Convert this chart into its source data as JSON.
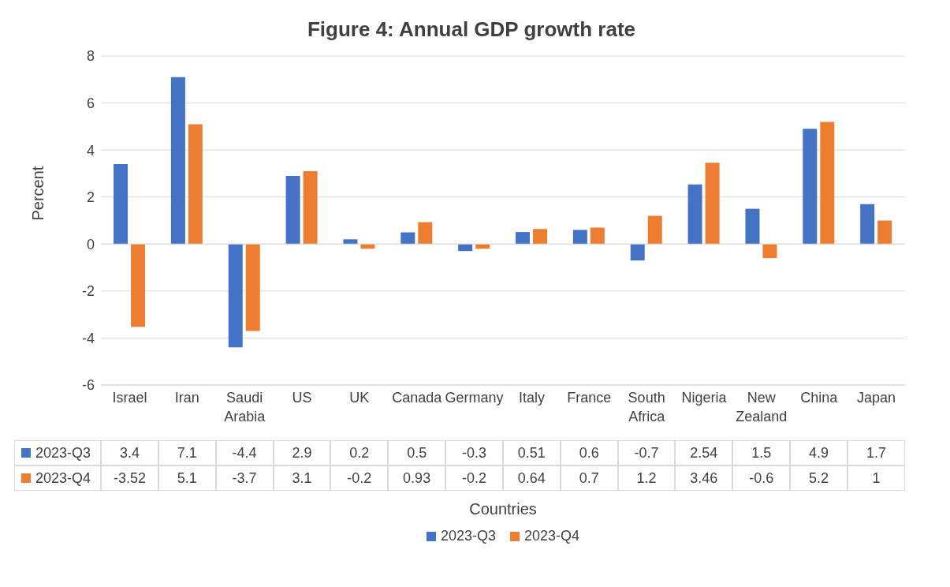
{
  "chart_data": {
    "type": "bar",
    "title": "Figure 4: Annual GDP growth rate",
    "xlabel": "Countries",
    "ylabel": "Percent",
    "categories": [
      "Israel",
      "Iran",
      "Saudi Arabia",
      "US",
      "UK",
      "Canada",
      "Germany",
      "Italy",
      "France",
      "South Africa",
      "Nigeria",
      "New Zealand",
      "China",
      "Japan"
    ],
    "series": [
      {
        "name": "2023-Q3",
        "color": "#4472c4",
        "values": [
          3.4,
          7.1,
          -4.4,
          2.9,
          0.2,
          0.5,
          -0.3,
          0.51,
          0.6,
          -0.7,
          2.54,
          1.5,
          4.9,
          1.7
        ]
      },
      {
        "name": "2023-Q4",
        "color": "#ed7d31",
        "values": [
          -3.52,
          5.1,
          -3.7,
          3.1,
          -0.2,
          0.93,
          -0.2,
          0.64,
          0.7,
          1.2,
          3.46,
          -0.6,
          5.2,
          1
        ]
      }
    ],
    "ylim": [
      -6,
      8
    ],
    "yticks": [
      -6,
      -4,
      -2,
      0,
      2,
      4,
      6,
      8
    ],
    "grid": "y",
    "legend": "bottom",
    "data_labels": true
  }
}
